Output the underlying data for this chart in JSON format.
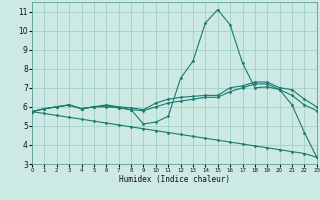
{
  "xlabel": "Humidex (Indice chaleur)",
  "bg_color": "#cce9e3",
  "grid_color": "#99ccc4",
  "line_color": "#1a7a6e",
  "xlim": [
    0,
    23
  ],
  "ylim": [
    3,
    11.5
  ],
  "yticks": [
    3,
    4,
    5,
    6,
    7,
    8,
    9,
    10,
    11
  ],
  "xticks": [
    0,
    1,
    2,
    3,
    4,
    5,
    6,
    7,
    8,
    9,
    10,
    11,
    12,
    13,
    14,
    15,
    16,
    17,
    18,
    19,
    20,
    21,
    22,
    23
  ],
  "line1_x": [
    0,
    1,
    2,
    3,
    4,
    5,
    6,
    7,
    8,
    9,
    10,
    11,
    12,
    13,
    14,
    15,
    16,
    17,
    18,
    19,
    20,
    21,
    22,
    23
  ],
  "line1_y": [
    5.75,
    5.9,
    6.0,
    6.1,
    5.9,
    6.0,
    6.05,
    5.95,
    5.85,
    5.1,
    5.2,
    5.5,
    7.5,
    8.4,
    10.4,
    11.1,
    10.3,
    8.3,
    7.0,
    7.05,
    6.9,
    6.1,
    4.65,
    3.35
  ],
  "line2_x": [
    0,
    1,
    2,
    3,
    4,
    5,
    6,
    7,
    8,
    9,
    10,
    11,
    12,
    13,
    14,
    15,
    16,
    17,
    18,
    19,
    20,
    21,
    22,
    23
  ],
  "line2_y": [
    5.75,
    5.9,
    6.0,
    6.1,
    5.9,
    6.0,
    6.1,
    6.0,
    5.95,
    5.85,
    6.2,
    6.4,
    6.5,
    6.55,
    6.6,
    6.6,
    7.0,
    7.1,
    7.3,
    7.3,
    7.0,
    6.9,
    6.4,
    6.0
  ],
  "line3_x": [
    0,
    1,
    2,
    3,
    4,
    5,
    6,
    7,
    8,
    9,
    10,
    11,
    12,
    13,
    14,
    15,
    16,
    17,
    18,
    19,
    20,
    21,
    22,
    23
  ],
  "line3_y": [
    5.75,
    5.9,
    6.0,
    6.1,
    5.9,
    6.0,
    6.0,
    5.95,
    5.85,
    5.8,
    6.0,
    6.2,
    6.3,
    6.4,
    6.5,
    6.5,
    6.8,
    7.0,
    7.2,
    7.2,
    6.9,
    6.6,
    6.1,
    5.8
  ],
  "line4_x": [
    0,
    1,
    2,
    3,
    4,
    5,
    6,
    7,
    8,
    9,
    10,
    11,
    12,
    13,
    14,
    15,
    16,
    17,
    18,
    19,
    20,
    21,
    22,
    23
  ],
  "line4_y": [
    5.75,
    5.65,
    5.55,
    5.45,
    5.35,
    5.25,
    5.15,
    5.05,
    4.95,
    4.85,
    4.75,
    4.65,
    4.55,
    4.45,
    4.35,
    4.25,
    4.15,
    4.05,
    3.95,
    3.85,
    3.75,
    3.65,
    3.55,
    3.35
  ]
}
